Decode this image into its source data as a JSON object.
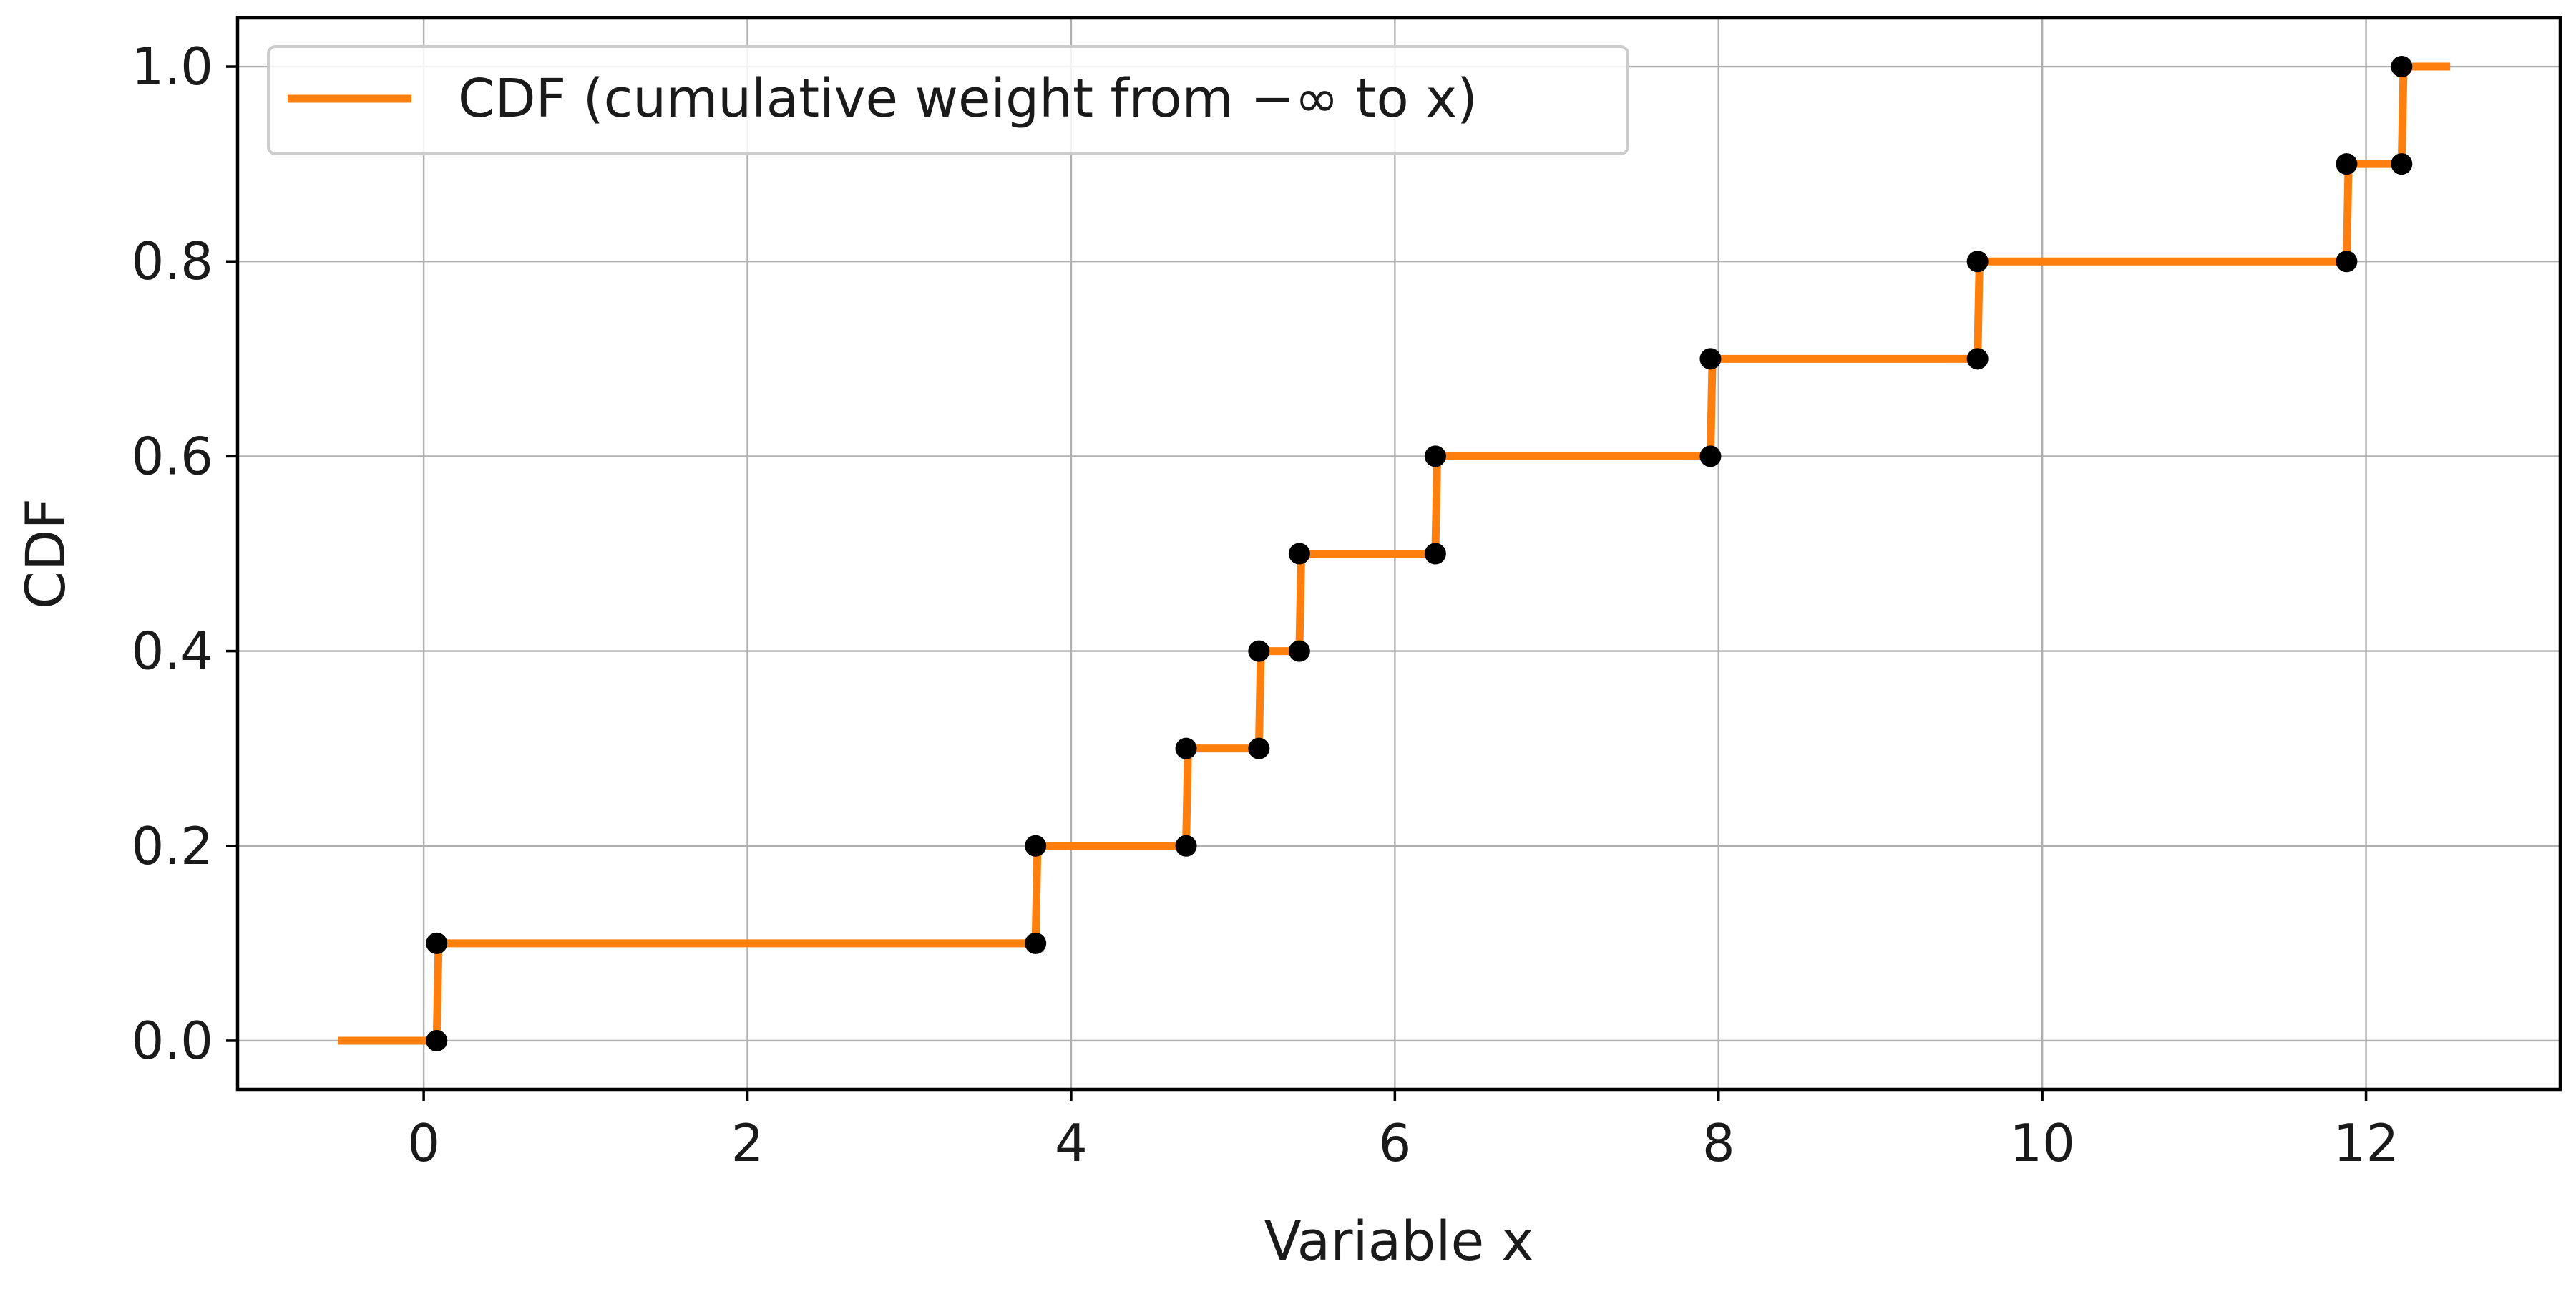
{
  "chart_data": {
    "type": "line",
    "subtype": "step-cdf",
    "title": "",
    "xlabel": "Variable x",
    "ylabel": "CDF",
    "xlim": [
      -1.15,
      13.2
    ],
    "ylim": [
      -0.05,
      1.05
    ],
    "xticks": [
      0,
      2,
      4,
      6,
      8,
      10,
      12
    ],
    "yticks": [
      0.0,
      0.2,
      0.4,
      0.6,
      0.8,
      1.0
    ],
    "xtick_labels": [
      "0",
      "2",
      "4",
      "6",
      "8",
      "10",
      "12"
    ],
    "ytick_labels": [
      "0.0",
      "0.2",
      "0.4",
      "0.6",
      "0.8",
      "1.0"
    ],
    "grid": true,
    "legend": {
      "position": "top-left",
      "entries": [
        "CDF (cumulative weight from −∞ to x)"
      ]
    },
    "series": [
      {
        "name": "CDF (cumulative weight from −∞ to x)",
        "color": "#ff7f0e",
        "x_start": -0.53,
        "x_end": 12.52,
        "jumps": [
          {
            "x": 0.08,
            "from": 0.0,
            "to": 0.1
          },
          {
            "x": 3.78,
            "from": 0.1,
            "to": 0.2
          },
          {
            "x": 4.71,
            "from": 0.2,
            "to": 0.3
          },
          {
            "x": 5.16,
            "from": 0.3,
            "to": 0.4
          },
          {
            "x": 5.41,
            "from": 0.4,
            "to": 0.5
          },
          {
            "x": 6.25,
            "from": 0.5,
            "to": 0.6
          },
          {
            "x": 7.95,
            "from": 0.6,
            "to": 0.7
          },
          {
            "x": 9.6,
            "from": 0.7,
            "to": 0.8
          },
          {
            "x": 11.88,
            "from": 0.8,
            "to": 0.9
          },
          {
            "x": 12.22,
            "from": 0.9,
            "to": 1.0
          }
        ]
      }
    ],
    "marker_color": "#000000"
  }
}
